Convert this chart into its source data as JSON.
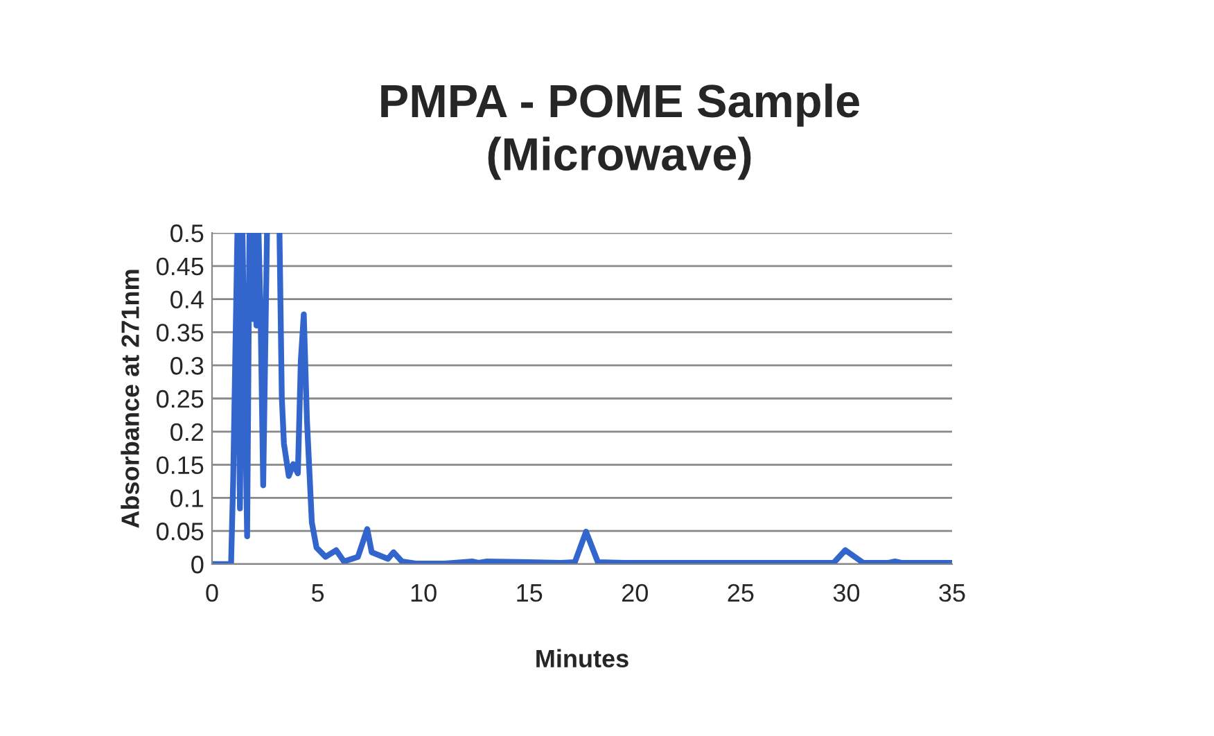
{
  "chart_data": {
    "type": "line",
    "title": "PMPA - POME Sample\n(Microwave)",
    "xlabel": "Minutes",
    "ylabel": "Absorbance at 271nm",
    "x": [
      0,
      0.9,
      1.0,
      1.2,
      1.32,
      1.44,
      1.66,
      1.77,
      1.9,
      2.0,
      2.1,
      2.2,
      2.3,
      2.42,
      2.6,
      2.9,
      3.19,
      3.3,
      3.4,
      3.63,
      3.84,
      4.06,
      4.2,
      4.34,
      4.49,
      4.72,
      4.94,
      5.37,
      5.87,
      6.24,
      6.9,
      7.34,
      7.55,
      8.32,
      8.58,
      8.98,
      9.63,
      11,
      12.3,
      12.6,
      13,
      16.5,
      17.16,
      17.69,
      18.25,
      19.5,
      29.4,
      29.95,
      30.8,
      32.0,
      32.3,
      32.6,
      35
    ],
    "series": [
      {
        "color": "#3366cc",
        "values": [
          0,
          0,
          0.126,
          0.5,
          0.084,
          0.5,
          0.042,
          0.5,
          0.37,
          0.5,
          0.36,
          0.5,
          0.37,
          0.119,
          0.5,
          null,
          0.5,
          0.252,
          0.182,
          0.133,
          0.151,
          0.137,
          0.308,
          0.377,
          0.217,
          0.063,
          0.025,
          0.011,
          0.021,
          0.004,
          0.011,
          0.053,
          0.018,
          0.008,
          0.018,
          0.004,
          0.001,
          0.001,
          0.004,
          0.002,
          0.004,
          0.002,
          0.003,
          0.049,
          0.003,
          0.002,
          0.002,
          0.021,
          0.002,
          0.002,
          0.004,
          0.002,
          0.002
        ]
      }
    ],
    "xlim": [
      0,
      35
    ],
    "xticks": [
      0,
      5,
      10,
      15,
      20,
      25,
      30,
      35
    ],
    "ylim": [
      0,
      0.5
    ],
    "yticks": [
      0,
      0.05,
      0.1,
      0.15,
      0.2,
      0.25,
      0.3,
      0.35,
      0.4,
      0.45,
      0.5
    ],
    "grid": "y",
    "legend": false,
    "line_style": "solid",
    "marker": "none"
  }
}
